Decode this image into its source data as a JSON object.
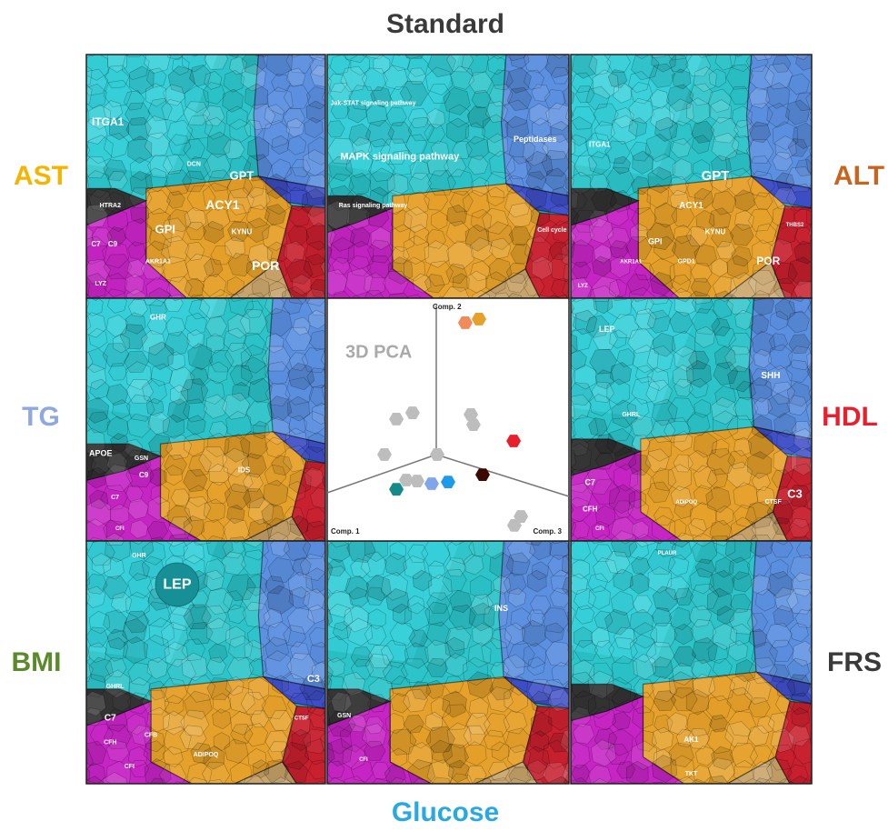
{
  "header": {
    "title": "Standard",
    "color": "#3a3a3a"
  },
  "side_labels": [
    {
      "text": "AST",
      "color": "#f5b400"
    },
    {
      "text": "ALT",
      "color": "#c8641e"
    },
    {
      "text": "TG",
      "color": "#8fa8e0"
    },
    {
      "text": "HDL",
      "color": "#e8202e"
    },
    {
      "text": "BMI",
      "color": "#5a8a2a"
    },
    {
      "text": "FRS",
      "color": "#3a3a3a"
    }
  ],
  "footer": {
    "text": "Glucose",
    "color": "#2aa8e0"
  },
  "panels": [
    {
      "labels": [
        "ITGA1",
        "DCN",
        "GPT",
        "ACY1",
        "GPI",
        "KYNU",
        "POR",
        "AKR1A1",
        "C7",
        "C9",
        "LYZ",
        "HTRA2"
      ]
    },
    {
      "labels": [
        "Jak-STAT signaling pathway",
        "MAPK signaling pathway",
        "Ras signaling pathway",
        "Peptidases",
        "Cell cycle"
      ]
    },
    {
      "labels": [
        "GPT",
        "ACY1",
        "KYNU",
        "GPI",
        "POR",
        "ITGA1",
        "THBS2",
        "GPD1",
        "AKR1A1",
        "LYZ"
      ]
    },
    {
      "labels": [
        "GHR",
        "APOE",
        "C9",
        "C7",
        "GSN",
        "IDS",
        "CFI"
      ]
    },
    {
      "labels": [
        "LEP",
        "SHH",
        "C3",
        "C7",
        "CFH",
        "GHRL",
        "ADIPOQ",
        "CFI",
        "CTSF"
      ]
    },
    {
      "labels": [
        "LEP",
        "GHR",
        "GHRL",
        "C7",
        "CFB",
        "CFH",
        "CFI",
        "C3",
        "ADIPOQ",
        "CTSF"
      ]
    },
    {
      "labels": [
        "INS",
        "GSN",
        "CFI"
      ]
    },
    {
      "labels": [
        "PLAUR",
        "AK1",
        "TKT"
      ]
    }
  ],
  "pca": {
    "title": "3D PCA",
    "axes": [
      "Comp. 1",
      "Comp. 2",
      "Comp. 3"
    ],
    "x": [
      57.1,
      62.8,
      28.6,
      35.3,
      59.4,
      60.5,
      45.5,
      23.7,
      32.7,
      37.2,
      77.1,
      64.3,
      28.6,
      43.2,
      50.0,
      80.1,
      77.4
    ],
    "y": [
      10.1,
      8.6,
      49.8,
      47.2,
      47.9,
      52.1,
      64.4,
      64.4,
      74.9,
      75.3,
      58.8,
      72.7,
      78.7,
      76.4,
      75.7,
      89.9,
      93.6
    ],
    "colors": [
      "#f08c5a",
      "#e6a12a",
      "#bdbdbd",
      "#bdbdbd",
      "#bdbdbd",
      "#bdbdbd",
      "#bdbdbd",
      "#bdbdbd",
      "#bdbdbd",
      "#bdbdbd",
      "#e8202e",
      "#3a0a00",
      "#168a8a",
      "#7ea6e8",
      "#1e9be8",
      "#bdbdbd",
      "#bdbdbd"
    ]
  }
}
